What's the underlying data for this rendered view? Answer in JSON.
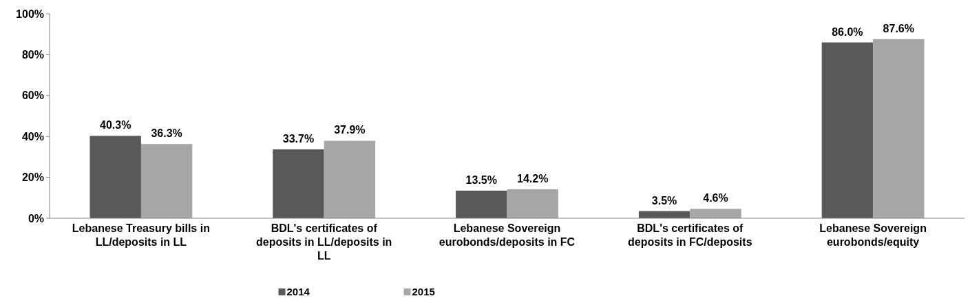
{
  "chart_data": {
    "type": "bar",
    "categories": [
      "Lebanese Treasury bills in LL/deposits in LL",
      "BDL's certificates of deposits in LL/deposits in LL",
      "Lebanese Sovereign eurobonds/deposits in FC",
      "BDL's certificates of deposits in FC/deposits",
      "Lebanese Sovereign eurobonds/equity"
    ],
    "series": [
      {
        "name": "2014",
        "color": "#595959",
        "values": [
          40.3,
          33.7,
          13.5,
          3.5,
          86.0
        ],
        "value_labels": [
          "40.3%",
          "33.7%",
          "13.5%",
          "3.5%",
          "86.0%"
        ]
      },
      {
        "name": "2015",
        "color": "#a6a6a6",
        "values": [
          36.3,
          37.9,
          14.2,
          4.6,
          87.6
        ],
        "value_labels": [
          "36.3%",
          "37.9%",
          "14.2%",
          "4.6%",
          "87.6%"
        ]
      }
    ],
    "ylim": [
      0,
      100
    ],
    "yticks": [
      {
        "value": 0,
        "label": "0%"
      },
      {
        "value": 20,
        "label": "20%"
      },
      {
        "value": 40,
        "label": "40%"
      },
      {
        "value": 60,
        "label": "60%"
      },
      {
        "value": 80,
        "label": "80%"
      },
      {
        "value": 100,
        "label": "100%"
      }
    ],
    "grid": false,
    "legend": "bottom"
  }
}
